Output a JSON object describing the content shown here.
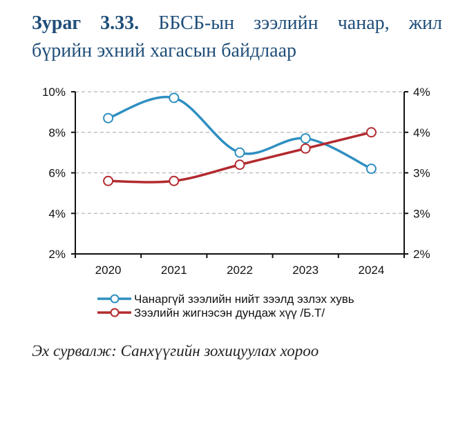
{
  "figure": {
    "label": "Зураг 3.33.",
    "title_line1": "ББСБ-ын зээлийн чанар, жил",
    "title_line2": "бүрийн эхний хагасын байдлаар",
    "source": "Эх сурвалж: Санхүүгийн зохицуулах хороо"
  },
  "chart_data": {
    "type": "line",
    "title": "ББСБ-ын зээлийн чанар, жил бүрийн эхний хагасын байдлаар",
    "categories": [
      "2020",
      "2021",
      "2022",
      "2023",
      "2024"
    ],
    "y_left": {
      "ylim": [
        2,
        10
      ],
      "ticks": [
        10,
        8,
        6,
        4,
        2
      ],
      "tick_labels": [
        "10%",
        "8%",
        "6%",
        "4%",
        "2%"
      ]
    },
    "y_right": {
      "ylim": [
        2.0,
        4.0
      ],
      "ticks": [
        4.0,
        3.5,
        3.0,
        2.5,
        2.0
      ],
      "tick_labels": [
        "4%",
        "4%",
        "3%",
        "3%",
        "2%"
      ]
    },
    "grid": true,
    "legend_position": "bottom",
    "series": [
      {
        "name": "Чанаргүй зээлийн нийт зээлд эзлэх хувь",
        "axis": "left",
        "color": "#2e8fc0",
        "smooth": true,
        "values": [
          8.7,
          9.7,
          7.0,
          7.7,
          6.2
        ]
      },
      {
        "name": "Зээлийн жигнэсэн дундаж хүү /Б.Т/",
        "axis": "right",
        "color": "#b22a2f",
        "smooth": true,
        "values": [
          2.9,
          2.9,
          3.1,
          3.3,
          3.5
        ]
      }
    ]
  }
}
